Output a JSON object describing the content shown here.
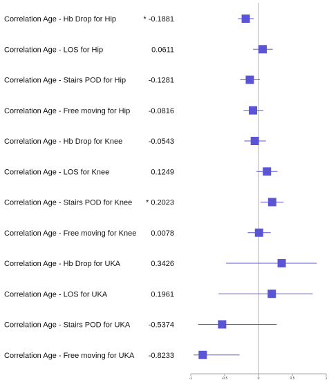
{
  "chart_data": {
    "type": "forest",
    "title": "",
    "xlabel": "",
    "ylabel": "",
    "xlim": [
      -1,
      1
    ],
    "xticks": [
      "-1",
      "-0.5",
      "0",
      "0.5",
      "1"
    ],
    "reference_line": 0,
    "grid": false,
    "marker_color": "#5b55d6",
    "ci_color": "#5b55d6",
    "reference_color": "#b0b0b0",
    "rows": [
      {
        "label": "Correlation Age - Hb Drop for Hip",
        "value_text": "* -0.1881",
        "estimate": -0.1881,
        "ci": [
          -0.3,
          -0.07
        ]
      },
      {
        "label": "Correlation Age - LOS for Hip",
        "value_text": "0.0611",
        "estimate": 0.0611,
        "ci": [
          -0.08,
          0.21
        ]
      },
      {
        "label": "Correlation Age - Stairs POD for Hip",
        "value_text": "-0.1281",
        "estimate": -0.1281,
        "ci": [
          -0.27,
          0.02
        ]
      },
      {
        "label": "Correlation Age - Free moving for Hip",
        "value_text": "-0.0816",
        "estimate": -0.0816,
        "ci": [
          -0.22,
          0.07
        ]
      },
      {
        "label": "Correlation Age - Hb Drop for Knee",
        "value_text": "-0.0543",
        "estimate": -0.0543,
        "ci": [
          -0.21,
          0.11
        ]
      },
      {
        "label": "Correlation Age - LOS for Knee",
        "value_text": "0.1249",
        "estimate": 0.1249,
        "ci": [
          -0.03,
          0.28
        ]
      },
      {
        "label": "Correlation Age - Stairs POD for Knee",
        "value_text": "* 0.2023",
        "estimate": 0.2023,
        "ci": [
          0.03,
          0.37
        ]
      },
      {
        "label": "Correlation Age - Free moving for Knee",
        "value_text": "0.0078",
        "estimate": 0.0078,
        "ci": [
          -0.16,
          0.18
        ]
      },
      {
        "label": "Correlation Age - Hb Drop for UKA",
        "value_text": "0.3426",
        "estimate": 0.3426,
        "ci": [
          -0.48,
          0.86
        ]
      },
      {
        "label": "Correlation Age - LOS for UKA",
        "value_text": "0.1961",
        "estimate": 0.1961,
        "ci": [
          -0.59,
          0.8
        ]
      },
      {
        "label": "Correlation Age - Stairs POD for UKA",
        "value_text": "-0.5374",
        "estimate": -0.5374,
        "ci": [
          -0.89,
          0.27
        ]
      },
      {
        "label": "Correlation Age - Free moving for UKA",
        "value_text": "-0.8233",
        "estimate": -0.8233,
        "ci": [
          -0.96,
          -0.28
        ]
      }
    ]
  }
}
